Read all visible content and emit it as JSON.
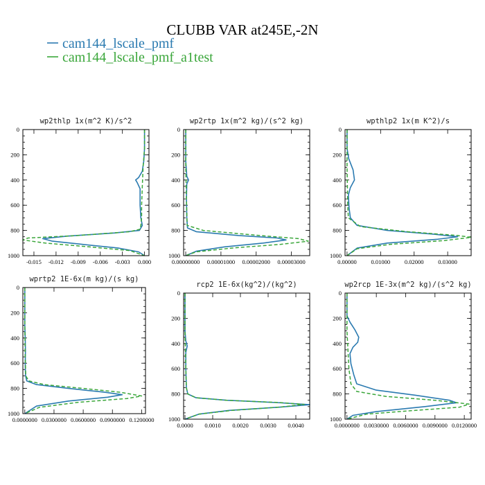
{
  "figure": {
    "title": "CLUBB VAR at245E,-2N",
    "legend": [
      {
        "name": "cam144_lscale_pmf",
        "color": "#2a7ab0",
        "style": "solid"
      },
      {
        "name": "cam144_lscale_pmf_a1test",
        "color": "#3aa63a",
        "style": "dashed"
      }
    ]
  },
  "chart_data": [
    {
      "type": "line",
      "title": "wp2thlp  1x(m^2 K)/s^2",
      "ylim": [
        1000,
        0
      ],
      "yticks": [
        0,
        200,
        400,
        600,
        800,
        1000
      ],
      "xlim": [
        -0.0165,
        0.0006
      ],
      "xticks": [
        -0.015,
        -0.012,
        -0.009,
        -0.006,
        -0.003,
        0.0
      ],
      "xtick_labels": [
        "-0.015",
        "-0.012",
        "-0.009",
        "-0.006",
        "-0.003",
        "0.000"
      ],
      "series": [
        {
          "name": "cam144_lscale_pmf",
          "x": [
            0.0,
            0.0,
            -0.0001,
            -0.0003,
            -0.0008,
            -0.0012,
            -0.001,
            -0.0006,
            -0.0006,
            -0.0005,
            -0.0003,
            -0.0007,
            -0.004,
            -0.0105,
            -0.0138,
            -0.0125,
            -0.0085,
            -0.0035,
            -0.0008,
            0.0
          ],
          "p": [
            0,
            150,
            250,
            330,
            380,
            400,
            420,
            470,
            600,
            700,
            760,
            800,
            820,
            845,
            865,
            885,
            910,
            940,
            970,
            1000
          ]
        },
        {
          "name": "cam144_lscale_pmf_a1test",
          "x": [
            0.0,
            0.0,
            -0.0002,
            -0.0003,
            -0.0004,
            -0.0004,
            -0.0005,
            -0.0006,
            -0.002,
            -0.009,
            -0.0158,
            -0.0165,
            -0.0135,
            -0.0075,
            -0.002,
            0.0
          ],
          "p": [
            0,
            150,
            300,
            450,
            600,
            700,
            760,
            790,
            810,
            840,
            860,
            875,
            900,
            930,
            960,
            1000
          ]
        }
      ]
    },
    {
      "type": "line",
      "title": "wp2rtp  1x(m^2 kg)/(s^2 kg)",
      "ylim": [
        1000,
        0
      ],
      "yticks": [
        0,
        200,
        400,
        600,
        800,
        1000
      ],
      "xlim": [
        -6e-07,
        3.52e-05
      ],
      "xticks": [
        0.0,
        1e-05,
        2e-05,
        3e-05
      ],
      "xtick_labels": [
        "0.00000000",
        "0.00001000",
        "0.00002000",
        "0.00003000"
      ],
      "series": [
        {
          "name": "cam144_lscale_pmf",
          "x": [
            0.0,
            0.0,
            3e-07,
            8e-07,
            3e-07,
            2e-07,
            3e-07,
            5e-07,
            3e-06,
            1.5e-05,
            2.6e-05,
            2.85e-05,
            2.2e-05,
            1.1e-05,
            3e-06,
            0.0
          ],
          "p": [
            0,
            250,
            370,
            400,
            430,
            550,
            700,
            780,
            810,
            840,
            860,
            875,
            900,
            930,
            965,
            1000
          ]
        },
        {
          "name": "cam144_lscale_pmf_a1test",
          "x": [
            0.0,
            0.0,
            2e-07,
            4e-07,
            5e-06,
            2.1e-05,
            3.2e-05,
            3.48e-05,
            2.7e-05,
            1.3e-05,
            3e-06,
            0.0
          ],
          "p": [
            0,
            300,
            550,
            760,
            800,
            840,
            865,
            885,
            910,
            940,
            970,
            1000
          ]
        }
      ]
    },
    {
      "type": "line",
      "title": "wpthlp2  1x(m K^2)/s",
      "ylim": [
        1000,
        0
      ],
      "yticks": [
        0,
        200,
        400,
        600,
        800,
        1000
      ],
      "xlim": [
        -0.0006,
        0.037
      ],
      "xticks": [
        0.0,
        0.01,
        0.02,
        0.03
      ],
      "xtick_labels": [
        "0.00000",
        "0.01000",
        "0.02000",
        "0.03000"
      ],
      "series": [
        {
          "name": "cam144_lscale_pmf",
          "x": [
            0.0,
            0.0,
            0.0005,
            0.0018,
            0.0022,
            0.001,
            0.0004,
            0.0006,
            0.001,
            0.003,
            0.012,
            0.026,
            0.033,
            0.027,
            0.012,
            0.003,
            0.0
          ],
          "p": [
            0,
            150,
            230,
            320,
            400,
            460,
            520,
            620,
            700,
            760,
            800,
            830,
            850,
            870,
            900,
            940,
            1000
          ]
        },
        {
          "name": "cam144_lscale_pmf_a1test",
          "x": [
            0.0,
            0.0,
            0.0002,
            0.0004,
            0.004,
            0.018,
            0.033,
            0.037,
            0.029,
            0.013,
            0.003,
            0.0
          ],
          "p": [
            0,
            300,
            600,
            700,
            770,
            810,
            840,
            855,
            880,
            910,
            945,
            1000
          ]
        }
      ]
    },
    {
      "type": "line",
      "title": "wprtp2  1E-6x(m kg)/(s kg)",
      "ylim": [
        1000,
        0
      ],
      "yticks": [
        0,
        200,
        400,
        600,
        800,
        1000
      ],
      "xlim": [
        -0.002,
        0.124
      ],
      "xticks": [
        0.0,
        0.03,
        0.06,
        0.09,
        0.12
      ],
      "xtick_labels": [
        "0.0000000",
        "0.0300000",
        "0.0600000",
        "0.0900000",
        "0.1200000"
      ],
      "series": [
        {
          "name": "cam144_lscale_pmf",
          "x": [
            0.0,
            0.0,
            0.0004,
            0.0006,
            0.0004,
            0.0008,
            0.002,
            0.012,
            0.045,
            0.082,
            0.1,
            0.085,
            0.045,
            0.012,
            0.0
          ],
          "p": [
            0,
            300,
            400,
            500,
            620,
            700,
            740,
            770,
            800,
            830,
            850,
            870,
            900,
            940,
            1000
          ]
        },
        {
          "name": "cam144_lscale_pmf_a1test",
          "x": [
            0.0,
            0.0,
            0.0004,
            0.001,
            0.004,
            0.02,
            0.06,
            0.098,
            0.12,
            0.105,
            0.055,
            0.015,
            0.0
          ],
          "p": [
            0,
            300,
            550,
            700,
            740,
            770,
            800,
            830,
            860,
            880,
            910,
            950,
            1000
          ]
        }
      ]
    },
    {
      "type": "line",
      "title": "rcp2  1E-6x(kg^2)/(kg^2)",
      "ylim": [
        1000,
        0
      ],
      "yticks": [
        0,
        200,
        400,
        600,
        800,
        1000
      ],
      "xlim": [
        -5e-05,
        0.0045
      ],
      "xticks": [
        0.0,
        0.001,
        0.002,
        0.003,
        0.004
      ],
      "xtick_labels": [
        "0.0000",
        "0.0010",
        "0.0020",
        "0.0030",
        "0.0040"
      ],
      "series": [
        {
          "name": "cam144_lscale_pmf",
          "x": [
            0.0,
            0.0,
            3e-05,
            8e-05,
            3e-05,
            3e-05,
            5e-05,
            0.0001,
            0.0004,
            0.0015,
            0.0033,
            0.0045,
            0.0034,
            0.0016,
            0.0005,
            0.0
          ],
          "p": [
            0,
            300,
            380,
            420,
            470,
            600,
            750,
            800,
            830,
            850,
            868,
            885,
            905,
            930,
            960,
            1000
          ]
        },
        {
          "name": "cam144_lscale_pmf_a1test",
          "x": [
            0.0,
            0.0,
            3e-05,
            5e-05,
            0.0001,
            0.0004,
            0.0015,
            0.0034,
            0.0043,
            0.0035,
            0.0017,
            0.0005,
            0.0
          ],
          "p": [
            0,
            300,
            600,
            750,
            800,
            830,
            850,
            868,
            883,
            903,
            930,
            960,
            1000
          ]
        }
      ]
    },
    {
      "type": "line",
      "title": "wp2rcp  1E-3x(m^2 kg)/(s^2 kg)",
      "ylim": [
        1000,
        0
      ],
      "yticks": [
        0,
        200,
        400,
        600,
        800,
        1000
      ],
      "xlim": [
        -0.0002,
        0.0127
      ],
      "xticks": [
        0.0,
        0.003,
        0.006,
        0.009,
        0.012
      ],
      "xtick_labels": [
        "0.0000000",
        "0.0030000",
        "0.0060000",
        "0.0090000",
        "0.0120000"
      ],
      "series": [
        {
          "name": "cam144_lscale_pmf",
          "x": [
            0.0,
            0.0,
            0.0003,
            0.0008,
            0.0012,
            0.0011,
            0.0006,
            0.0003,
            0.0004,
            0.0007,
            0.001,
            0.003,
            0.007,
            0.0105,
            0.0112,
            0.008,
            0.003,
            0.0006,
            0.0
          ],
          "p": [
            0,
            180,
            230,
            290,
            350,
            390,
            430,
            480,
            560,
            650,
            720,
            770,
            810,
            850,
            870,
            900,
            940,
            970,
            1000
          ]
        },
        {
          "name": "cam144_lscale_pmf_a1test",
          "x": [
            0.0,
            0.0,
            0.0002,
            0.0004,
            0.001,
            0.004,
            0.009,
            0.0125,
            0.0115,
            0.007,
            0.002,
            0.0
          ],
          "p": [
            0,
            300,
            600,
            720,
            780,
            820,
            850,
            880,
            905,
            930,
            960,
            1000
          ]
        }
      ]
    }
  ]
}
